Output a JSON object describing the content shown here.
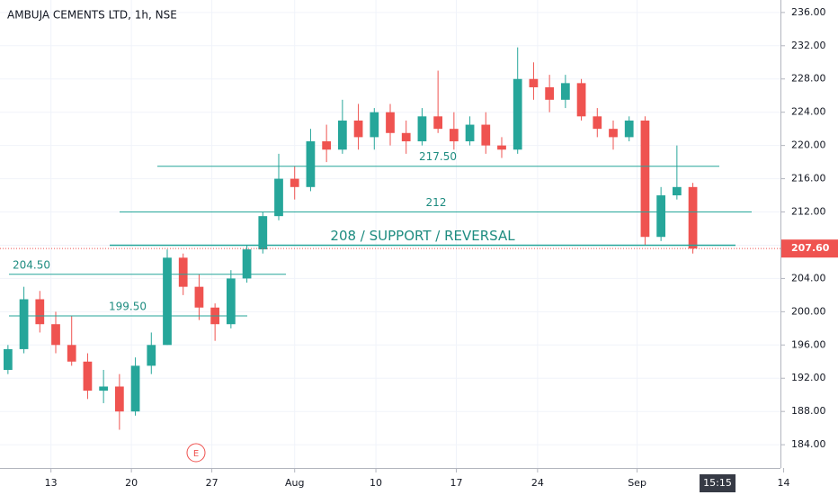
{
  "chart_data": {
    "type": "candlestick",
    "title": "AMBUJA CEMENTS LTD, 1h, NSE",
    "up_color": "#26a69a",
    "down_color": "#ef5350",
    "grid": true,
    "xlim": [
      0,
      49
    ],
    "ylim": [
      181.2,
      237.5
    ],
    "xticks": [
      {
        "value": 3.2,
        "label": "13"
      },
      {
        "value": 8.25,
        "label": "20"
      },
      {
        "value": 13.3,
        "label": "27"
      },
      {
        "value": 18.5,
        "label": "Aug"
      },
      {
        "value": 23.6,
        "label": "10"
      },
      {
        "value": 28.65,
        "label": "17"
      },
      {
        "value": 33.75,
        "label": "24"
      },
      {
        "value": 40,
        "label": "Sep"
      },
      {
        "value": 49.2,
        "label": "14"
      }
    ],
    "crosshair_time": {
      "value": 45.05,
      "label": "15:15"
    },
    "yticks": [
      {
        "value": 184,
        "label": "184.00"
      },
      {
        "value": 188,
        "label": "188.00"
      },
      {
        "value": 192,
        "label": "192.00"
      },
      {
        "value": 196,
        "label": "196.00"
      },
      {
        "value": 200,
        "label": "200.00"
      },
      {
        "value": 204,
        "label": "204.00"
      },
      {
        "value": 208,
        "label": "208.00"
      },
      {
        "value": 212,
        "label": "212.00"
      },
      {
        "value": 216,
        "label": "216.00"
      },
      {
        "value": 220,
        "label": "220.00"
      },
      {
        "value": 224,
        "label": "224.00"
      },
      {
        "value": 228,
        "label": "228.00"
      },
      {
        "value": 232,
        "label": "232.00"
      },
      {
        "value": 236,
        "label": "236.00"
      }
    ],
    "x": [
      0.5,
      1.5,
      2.5,
      3.5,
      4.5,
      5.5,
      6.5,
      7.5,
      8.5,
      9.5,
      10.5,
      11.5,
      12.5,
      13.5,
      14.5,
      15.5,
      16.5,
      17.5,
      18.5,
      19.5,
      20.5,
      21.5,
      22.5,
      23.5,
      24.5,
      25.5,
      26.5,
      27.5,
      28.5,
      29.5,
      30.5,
      31.5,
      32.5,
      33.5,
      34.5,
      35.5,
      36.5,
      37.5,
      38.5,
      39.5,
      40.5,
      41.5,
      42.5,
      43.5
    ],
    "ohlc": [
      [
        193,
        196,
        192.5,
        195.5
      ],
      [
        195.5,
        203,
        195,
        201.5
      ],
      [
        201.5,
        202.5,
        197.5,
        198.5
      ],
      [
        198.5,
        200,
        195,
        196
      ],
      [
        196,
        199.5,
        193.5,
        194
      ],
      [
        194,
        195,
        189.5,
        190.5
      ],
      [
        190.5,
        193,
        189,
        191
      ],
      [
        191,
        192.5,
        185.8,
        188
      ],
      [
        188,
        194.5,
        187.5,
        193.5
      ],
      [
        193.5,
        197.5,
        192.5,
        196
      ],
      [
        196,
        207.5,
        196,
        206.5
      ],
      [
        206.5,
        207,
        202,
        203
      ],
      [
        203,
        204.5,
        199,
        200.5
      ],
      [
        200.5,
        201,
        196.5,
        198.5
      ],
      [
        198.5,
        205,
        198,
        204
      ],
      [
        204,
        208,
        203.5,
        207.5
      ],
      [
        207.5,
        212,
        207,
        211.5
      ],
      [
        211.5,
        219,
        211,
        216
      ],
      [
        216,
        217.5,
        213.5,
        215
      ],
      [
        215,
        222,
        214.5,
        220.5
      ],
      [
        220.5,
        222.5,
        218,
        219.5
      ],
      [
        219.5,
        225.5,
        219,
        223
      ],
      [
        223,
        225,
        219.5,
        221
      ],
      [
        221,
        224.5,
        219.5,
        224
      ],
      [
        224,
        225,
        220,
        221.5
      ],
      [
        221.5,
        223,
        219,
        220.5
      ],
      [
        220.5,
        224.5,
        220,
        223.5
      ],
      [
        223.5,
        229,
        221.5,
        222
      ],
      [
        222,
        224,
        219.5,
        220.5
      ],
      [
        220.5,
        223.5,
        220,
        222.5
      ],
      [
        222.5,
        224,
        219,
        220
      ],
      [
        220,
        221,
        218.5,
        219.5
      ],
      [
        219.5,
        231.8,
        219,
        228
      ],
      [
        228,
        230,
        225.5,
        227
      ],
      [
        227,
        228.5,
        224,
        225.5
      ],
      [
        225.5,
        228.5,
        224.5,
        227.5
      ],
      [
        227.5,
        228,
        223,
        223.5
      ],
      [
        223.5,
        224.5,
        221,
        222
      ],
      [
        222,
        223,
        219.5,
        221
      ],
      [
        221,
        223.5,
        220.5,
        223
      ],
      [
        223,
        223.5,
        208,
        209
      ],
      [
        209,
        215,
        208.5,
        214
      ],
      [
        214,
        220,
        213.5,
        215
      ],
      [
        215,
        215.5,
        207,
        207.6
      ]
    ],
    "levels": [
      {
        "value": 204.5,
        "label": "204.50"
      },
      {
        "value": 199.5,
        "label": "199.50"
      },
      {
        "value": 217.5,
        "label": "217.50"
      },
      {
        "value": 212,
        "label": "212"
      },
      {
        "value": 208,
        "label": "208 / SUPPORT / REVERSAL"
      }
    ],
    "last_price": {
      "value": 207.6,
      "label": "207.60"
    },
    "event_marker": "E"
  }
}
